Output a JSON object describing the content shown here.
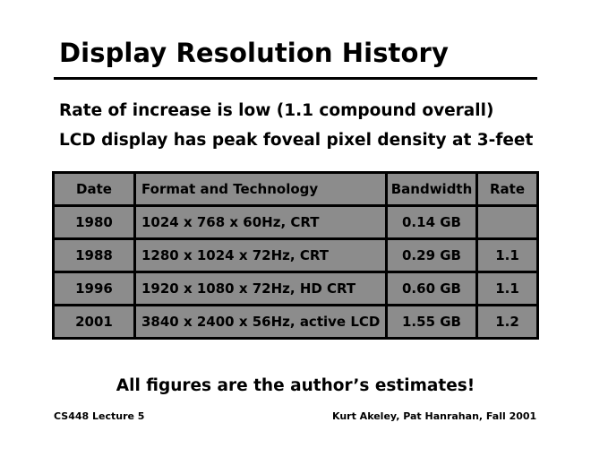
{
  "slide": {
    "title": "Display Resolution History",
    "bullets": [
      "Rate of increase is low (1.1 compound overall)",
      "LCD display has peak foveal pixel density at 3-feet"
    ],
    "table": {
      "headers": [
        "Date",
        "Format and Technology",
        "Bandwidth",
        "Rate"
      ],
      "rows": [
        [
          "1980",
          "1024 x 768 x 60Hz, CRT",
          "0.14 GB",
          ""
        ],
        [
          "1988",
          "1280 x 1024 x 72Hz, CRT",
          "0.29 GB",
          "1.1"
        ],
        [
          "1996",
          "1920 x 1080 x 72Hz, HD CRT",
          "0.60 GB",
          "1.1"
        ],
        [
          "2001",
          "3840 x 2400 x 56Hz, active LCD",
          "1.55 GB",
          "1.2"
        ]
      ]
    },
    "footnote": "All figures are the author’s estimates!"
  },
  "footer": {
    "left": "CS448 Lecture 5",
    "right": "Kurt Akeley, Pat Hanrahan, Fall 2001"
  },
  "colors": {
    "table_fill": "#8c8c8c",
    "rule": "#000000"
  }
}
